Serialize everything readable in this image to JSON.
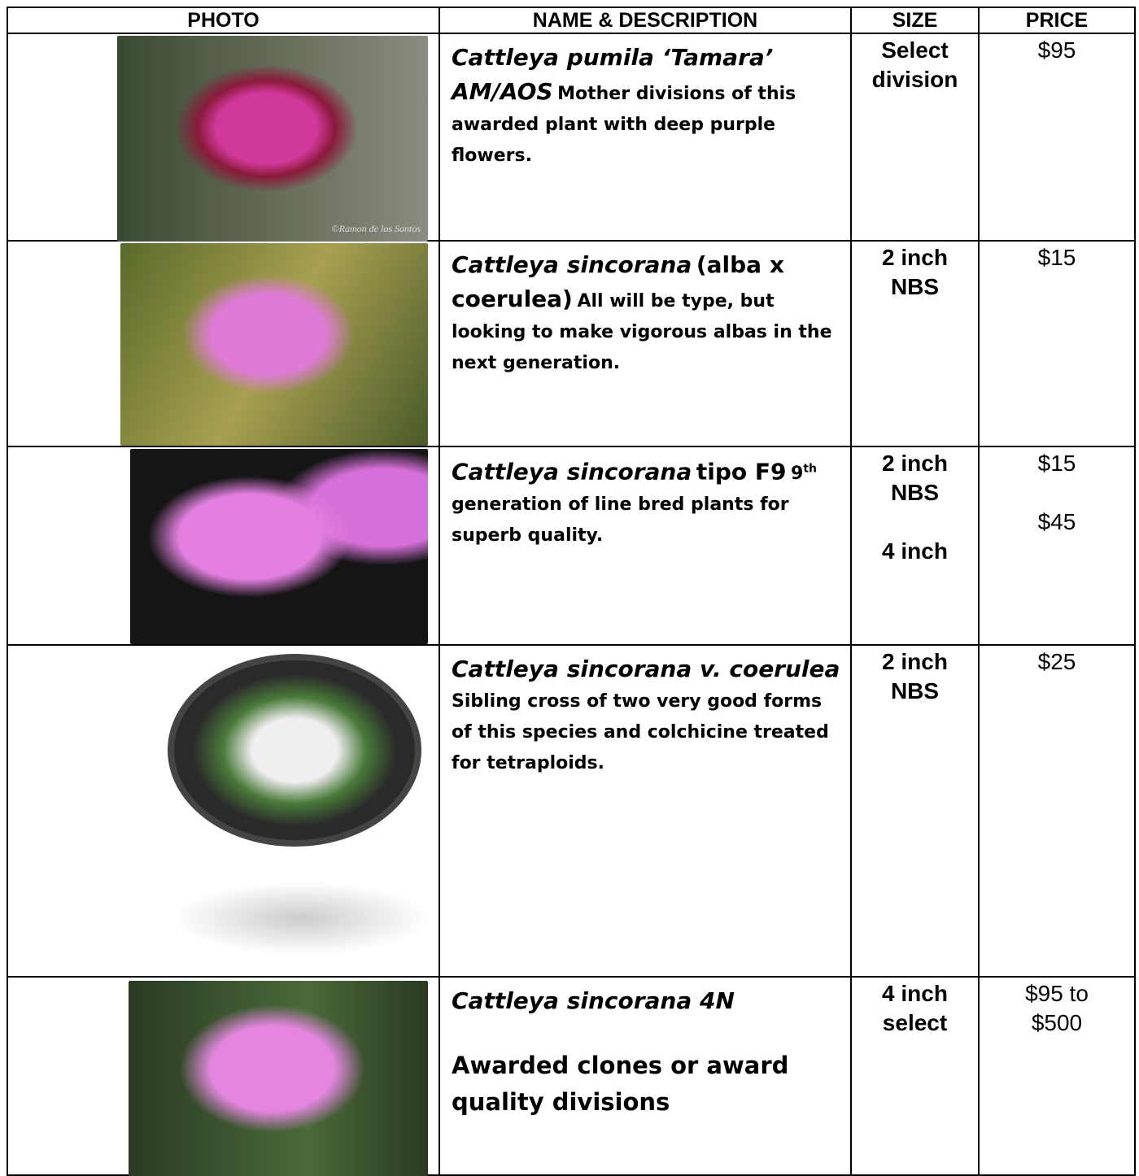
{
  "table": {
    "header": [
      "PHOTO",
      "NAME & DESCRIPTION",
      "SIZE",
      "PRICE"
    ],
    "rows": [
      {
        "name_italic": "Cattleya pumila ‘Tamara’ AM/AOS",
        "name_plain": null,
        "description": [
          "Mother divisions of this awarded plant with deep purple flowers."
        ],
        "sizes": [
          "Select division"
        ],
        "prices": [
          "$95"
        ],
        "photo_credit": "©Ramon de los Santos"
      },
      {
        "name_italic": "Cattleya sincorana",
        "name_plain": "(alba x coerulea)",
        "description": [
          "All will be type, but looking to make vigorous albas in the next generation."
        ],
        "sizes": [
          "2 inch NBS"
        ],
        "prices": [
          "$15"
        ]
      },
      {
        "name_italic": "Cattleya sincorana",
        "name_plain": "tipo F9",
        "description": [
          "9",
          "th",
          "generation of line bred plants for superb quality."
        ],
        "sizes": [
          "2 inch NBS",
          "4 inch"
        ],
        "prices": [
          "$15",
          "$45"
        ]
      },
      {
        "name_italic": "Cattleya sincorana v. coerulea",
        "name_plain": null,
        "description": [
          "Sibling cross of two very good forms of this species and colchicine treated for tetraploids."
        ],
        "sizes": [
          "2 inch NBS"
        ],
        "prices": [
          "$25"
        ]
      },
      {
        "name_italic": "Cattleya sincorana 4N",
        "name_plain": null,
        "description": [
          "Awarded clones or award quality divisions"
        ],
        "sizes": [
          "4 inch select"
        ],
        "prices": [
          "$95 to $500"
        ]
      }
    ]
  }
}
